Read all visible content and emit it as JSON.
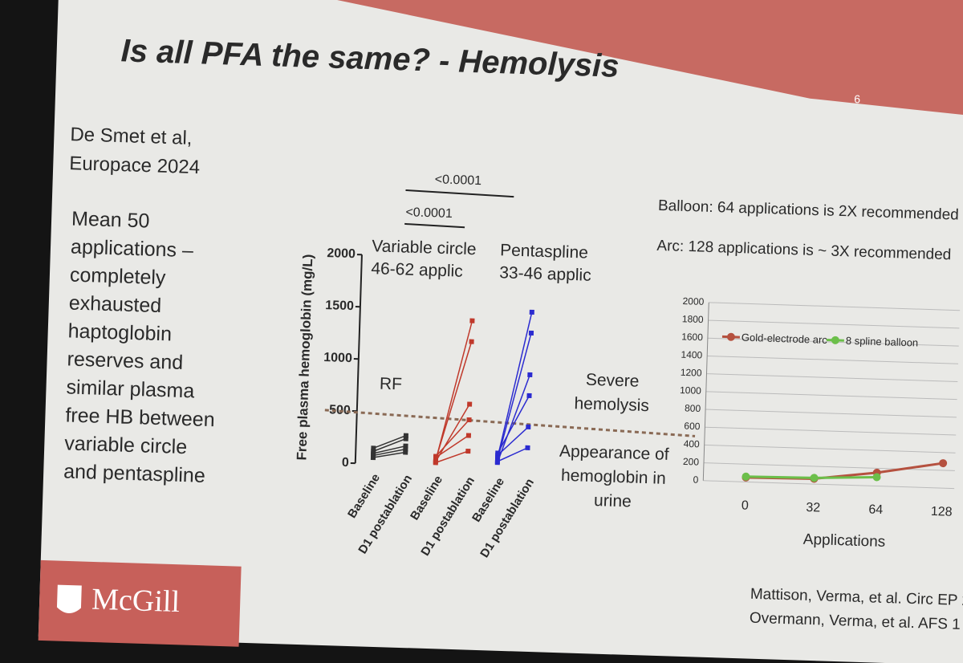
{
  "slide": {
    "title": "Is all PFA the same? - Hemolysis",
    "page_number": "6",
    "reference": [
      "De Smet et al,",
      "Europace 2024"
    ],
    "body": [
      "Mean 50",
      "applications –",
      "completely",
      "exhausted",
      "haptoglobin",
      "reserves and",
      "similar plasma",
      "free HB between",
      "variable circle",
      "and pentaspline"
    ],
    "p_values": [
      "<0.0001",
      "<0.0001"
    ],
    "notes": [
      "Balloon:  64 applications is 2X recommended",
      "Arc: 128 applications is ~ 3X recommended"
    ],
    "severe": [
      "Severe",
      "hemolysis"
    ],
    "urine": [
      "Appearance of",
      "hemoglobin in",
      "urine"
    ],
    "citations": [
      "Mattison, Verma, et al. Circ EP 2",
      "Overmann, Verma, et al. AFS 1"
    ],
    "logo": "McGill"
  },
  "chart_data": [
    {
      "type": "dot",
      "ylabel": "Free plasma hemoglobin (mg/L)",
      "categories": [
        "Baseline",
        "D1 postablation",
        "Baseline",
        "D1 postablation",
        "Baseline",
        "D1 postablation"
      ],
      "groups": [
        {
          "label": [
            "RF"
          ],
          "color": "#333333",
          "pairs": [
            [
              100,
              180
            ],
            [
              120,
              250
            ],
            [
              80,
              150
            ],
            [
              150,
              280
            ],
            [
              60,
              120
            ]
          ]
        },
        {
          "label": [
            "Variable circle",
            "46-62 applic"
          ],
          "color": "#c0392b",
          "pairs": [
            [
              50,
              1400
            ],
            [
              60,
              1200
            ],
            [
              40,
              600
            ],
            [
              80,
              300
            ],
            [
              30,
              150
            ],
            [
              90,
              450
            ]
          ]
        },
        {
          "label": [
            "Pentaspline",
            "33-46 applic"
          ],
          "color": "#2b2bd0",
          "pairs": [
            [
              100,
              1500
            ],
            [
              80,
              1300
            ],
            [
              50,
              900
            ],
            [
              120,
              400
            ],
            [
              60,
              200
            ],
            [
              140,
              700
            ]
          ]
        }
      ],
      "reference_line": 500,
      "ylim": [
        0,
        2000
      ],
      "yticks": [
        0,
        500,
        1000,
        1500,
        2000
      ]
    },
    {
      "type": "line",
      "xlabel": "Applications",
      "categories": [
        "0",
        "32",
        "64",
        "128"
      ],
      "series": [
        {
          "name": "Gold-electrode arc",
          "color": "#b5513f",
          "values": [
            50,
            60,
            150,
            280
          ]
        },
        {
          "name": "8 spline balloon",
          "color": "#6cbf4a",
          "values": [
            60,
            70,
            100,
            null
          ]
        }
      ],
      "ylim": [
        0,
        2000
      ],
      "yticks": [
        0,
        200,
        400,
        600,
        800,
        1000,
        1200,
        1400,
        1600,
        1800,
        2000
      ],
      "grid": true
    }
  ]
}
